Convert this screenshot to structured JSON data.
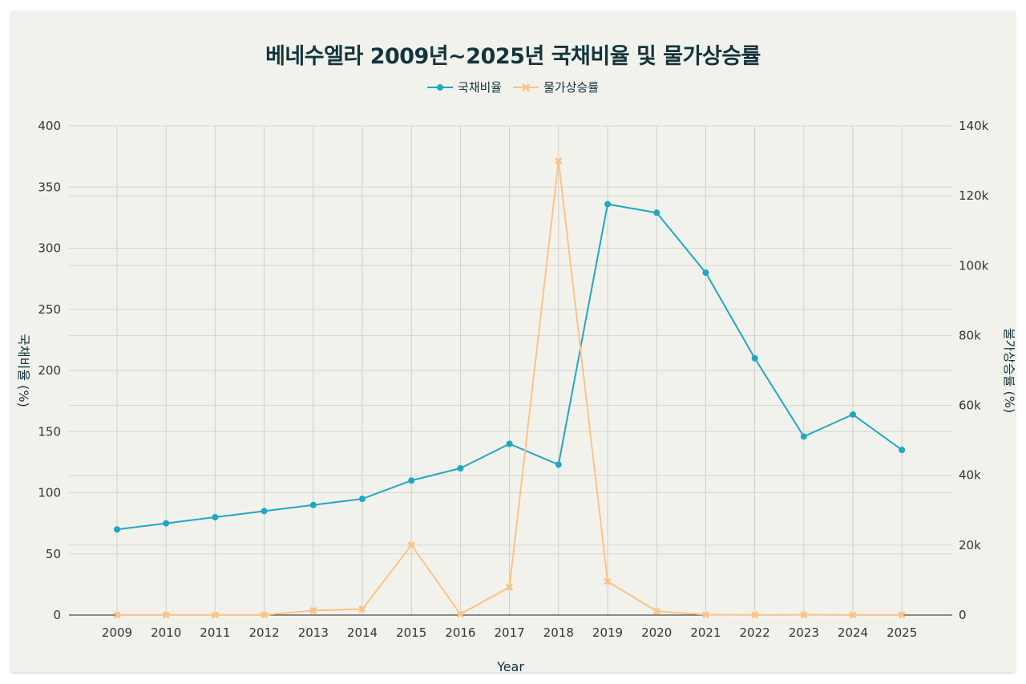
{
  "chart_data": {
    "type": "line",
    "title": "베네수엘라 2009년~2025년 국채비율 및 물가상승률",
    "xlabel": "Year",
    "ylabel_left": "국채비율 (%)",
    "ylabel_right": "물가상승률 (%)",
    "categories": [
      "2009",
      "2010",
      "2011",
      "2012",
      "2013",
      "2014",
      "2015",
      "2016",
      "2017",
      "2018",
      "2019",
      "2020",
      "2021",
      "2022",
      "2023",
      "2024",
      "2025"
    ],
    "y_left_ticks": [
      "0",
      "50",
      "100",
      "150",
      "200",
      "250",
      "300",
      "350",
      "400"
    ],
    "y_right_ticks": [
      "0",
      "20k",
      "40k",
      "60k",
      "80k",
      "100k",
      "120k",
      "140k"
    ],
    "ylim_left": [
      0,
      400
    ],
    "ylim_right": [
      0,
      140000
    ],
    "series": [
      {
        "name": "국채비율",
        "axis": "left",
        "color": "#1fa7c4",
        "marker": "circle",
        "values": [
          70,
          75,
          80,
          85,
          90,
          95,
          110,
          120,
          140,
          123,
          336,
          329,
          280,
          210,
          146,
          164,
          135
        ]
      },
      {
        "name": "물가상승률",
        "axis": "right",
        "color": "#ffc285",
        "marker": "x",
        "values": [
          28,
          29,
          27,
          21,
          1300,
          1700,
          20000,
          255,
          8000,
          130000,
          9600,
          1100,
          100,
          30,
          60,
          40,
          30
        ]
      }
    ]
  }
}
